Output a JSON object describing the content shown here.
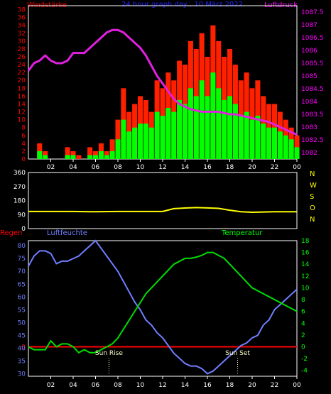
{
  "colors": {
    "wind_label": "#ff0000",
    "title": "#2222ff",
    "pressure": "#ff00ff",
    "pressure_line": "#e020e0",
    "gust": "#ff2000",
    "mean": "#00ff00",
    "dir": "#ffff00",
    "dir_letters": "#ffff00",
    "axis": "#ffffff",
    "rain": "#ff0000",
    "humidity": "#6f7fff",
    "temp": "#00dd00",
    "temp_axis": "#00ff00",
    "sun": "#ffffcc"
  },
  "header": {
    "wind_label": "Windstärke",
    "title": "24 hour graph day , 10 März 2022",
    "pressure_label": "Luftdruck"
  },
  "bottom_labels": {
    "rain": "Regen",
    "humidity": "Luftfeuchte",
    "temp": "Temperatur",
    "sunrise": "Sun Rise",
    "sunset": "Sun Set"
  },
  "time_ticks": [
    "02",
    "04",
    "06",
    "08",
    "10",
    "12",
    "14",
    "16",
    "18",
    "20",
    "22",
    "00"
  ],
  "direction_letters": [
    "N",
    "W",
    "S",
    "O",
    "N"
  ],
  "chart_data": [
    {
      "type": "line",
      "name": "wind_and_pressure",
      "x_range": [
        0,
        24
      ],
      "left_axis": {
        "label": "Windstärke",
        "ticks": [
          0,
          2,
          4,
          6,
          8,
          10,
          12,
          14,
          16,
          18,
          20,
          22,
          24,
          26,
          28,
          30,
          32,
          34,
          36,
          38
        ],
        "range": [
          0,
          39
        ]
      },
      "right_axis": {
        "label": "Luftdruck",
        "ticks": [
          1082,
          1082.5,
          1083,
          1083.5,
          1084,
          1084.5,
          1085,
          1085.5,
          1086,
          1086.5,
          1087,
          1087.5
        ],
        "range": [
          1081.75,
          1087.75
        ]
      },
      "series": [
        {
          "name": "Luftdruck",
          "axis": "right",
          "x": [
            0,
            0.5,
            1,
            1.5,
            2,
            2.5,
            3,
            3.5,
            4,
            4.5,
            5,
            5.5,
            6,
            6.5,
            7,
            7.5,
            8,
            8.5,
            9,
            9.5,
            10,
            10.5,
            11,
            11.5,
            12,
            12.5,
            13,
            13.5,
            14,
            14.5,
            15,
            15.5,
            16,
            16.5,
            17,
            17.5,
            18,
            18.5,
            19,
            19.5,
            20,
            20.5,
            21,
            21.5,
            22,
            22.5,
            23,
            23.5,
            24
          ],
          "values": [
            1085.2,
            1085.5,
            1085.6,
            1085.8,
            1085.6,
            1085.5,
            1085.5,
            1085.6,
            1085.9,
            1085.9,
            1085.9,
            1086.1,
            1086.3,
            1086.5,
            1086.7,
            1086.8,
            1086.8,
            1086.7,
            1086.5,
            1086.3,
            1086.1,
            1085.8,
            1085.4,
            1085.0,
            1084.7,
            1084.4,
            1084.1,
            1083.9,
            1083.8,
            1083.7,
            1083.65,
            1083.6,
            1083.6,
            1083.6,
            1083.6,
            1083.55,
            1083.5,
            1083.5,
            1083.45,
            1083.4,
            1083.35,
            1083.3,
            1083.25,
            1083.2,
            1083.1,
            1083.0,
            1082.9,
            1082.8,
            1082.7
          ]
        },
        {
          "name": "Windböen",
          "axis": "left",
          "x": [
            0,
            0.5,
            1,
            1.5,
            2,
            2.5,
            3,
            3.5,
            4,
            4.5,
            5,
            5.5,
            6,
            6.5,
            7,
            7.5,
            8,
            8.5,
            9,
            9.5,
            10,
            10.5,
            11,
            11.5,
            12,
            12.5,
            13,
            13.5,
            14,
            14.5,
            15,
            15.5,
            16,
            16.5,
            17,
            17.5,
            18,
            18.5,
            19,
            19.5,
            20,
            20.5,
            21,
            21.5,
            22,
            22.5,
            23,
            23.5,
            24
          ],
          "values": [
            0,
            0,
            4,
            2,
            0,
            0,
            0,
            3,
            2,
            1,
            0,
            3,
            2,
            4,
            2,
            5,
            10,
            18,
            12,
            14,
            16,
            15,
            12,
            20,
            18,
            22,
            20,
            25,
            24,
            30,
            28,
            32,
            26,
            34,
            30,
            26,
            28,
            24,
            20,
            22,
            18,
            20,
            16,
            14,
            14,
            12,
            10,
            8,
            6
          ]
        },
        {
          "name": "Windmittel",
          "axis": "left",
          "x": [
            0,
            0.5,
            1,
            1.5,
            2,
            2.5,
            3,
            3.5,
            4,
            4.5,
            5,
            5.5,
            6,
            6.5,
            7,
            7.5,
            8,
            8.5,
            9,
            9.5,
            10,
            10.5,
            11,
            11.5,
            12,
            12.5,
            13,
            13.5,
            14,
            14.5,
            15,
            15.5,
            16,
            16.5,
            17,
            17.5,
            18,
            18.5,
            19,
            19.5,
            20,
            20.5,
            21,
            21.5,
            22,
            22.5,
            23,
            23.5,
            24
          ],
          "values": [
            0,
            0,
            2,
            1,
            0,
            0,
            0,
            1,
            1,
            0,
            0,
            1,
            1,
            2,
            1,
            2,
            5,
            10,
            7,
            8,
            9,
            9,
            8,
            12,
            11,
            13,
            12,
            15,
            14,
            18,
            16,
            20,
            16,
            22,
            18,
            15,
            16,
            14,
            11,
            12,
            10,
            11,
            9,
            8,
            8,
            7,
            6,
            5,
            3
          ]
        }
      ]
    },
    {
      "type": "line",
      "name": "wind_direction",
      "x_range": [
        0,
        24
      ],
      "y_axis": {
        "ticks": [
          0,
          90,
          180,
          270,
          360
        ],
        "range": [
          0,
          360
        ]
      },
      "series": [
        {
          "name": "Windrichtung",
          "x": [
            0,
            2,
            4,
            6,
            8,
            10,
            12,
            13,
            14,
            15,
            16,
            17,
            18,
            19,
            20,
            22,
            24
          ],
          "values": [
            110,
            110,
            110,
            108,
            110,
            110,
            110,
            128,
            132,
            135,
            133,
            130,
            118,
            108,
            105,
            108,
            108
          ]
        }
      ]
    },
    {
      "type": "line",
      "name": "humidity_and_temperature",
      "x_range": [
        0,
        24
      ],
      "left_axis": {
        "label": "Luftfeuchte",
        "ticks": [
          30,
          35,
          40,
          45,
          50,
          55,
          60,
          65,
          70,
          75,
          80
        ],
        "range": [
          29,
          82
        ]
      },
      "right_axis": {
        "label": "Temperatur",
        "ticks": [
          -4,
          -2,
          0,
          2,
          4,
          6,
          8,
          10,
          12,
          14,
          16,
          18
        ],
        "range": [
          -5,
          18
        ]
      },
      "rain_line": {
        "label": "0",
        "value": 0
      },
      "series": [
        {
          "name": "Luftfeuchte",
          "axis": "left",
          "x": [
            0,
            0.5,
            1,
            1.5,
            2,
            2.5,
            3,
            3.5,
            4,
            4.5,
            5,
            5.5,
            6,
            6.5,
            7,
            7.5,
            8,
            8.5,
            9,
            9.5,
            10,
            10.5,
            11,
            11.5,
            12,
            12.5,
            13,
            13.5,
            14,
            14.5,
            15,
            15.5,
            16,
            16.5,
            17,
            17.5,
            18,
            18.5,
            19,
            19.5,
            20,
            20.5,
            21,
            21.5,
            22,
            22.5,
            23,
            23.5,
            24
          ],
          "values": [
            72,
            76,
            78,
            78,
            77,
            73,
            74,
            74,
            75,
            76,
            78,
            80,
            82,
            79,
            76,
            73,
            70,
            66,
            62,
            58,
            55,
            51,
            49,
            46,
            44,
            41,
            38,
            36,
            34,
            33,
            33,
            32,
            30,
            31,
            33,
            35,
            37,
            39,
            41,
            42,
            44,
            45,
            49,
            51,
            55,
            57,
            59,
            61,
            63
          ]
        },
        {
          "name": "Temperatur",
          "axis": "right",
          "x": [
            0,
            0.5,
            1,
            1.5,
            2,
            2.5,
            3,
            3.5,
            4,
            4.5,
            5,
            5.5,
            6,
            6.5,
            7,
            7.5,
            8,
            8.5,
            9,
            9.5,
            10,
            10.5,
            11,
            11.5,
            12,
            12.5,
            13,
            13.5,
            14,
            14.5,
            15,
            15.5,
            16,
            16.5,
            17,
            17.5,
            18,
            18.5,
            19,
            19.5,
            20,
            20.5,
            21,
            21.5,
            22,
            22.5,
            23,
            23.5,
            24
          ],
          "values": [
            0,
            -0.5,
            -0.5,
            -0.5,
            1,
            0,
            0.5,
            0.5,
            0,
            -1,
            -0.5,
            -1,
            -1,
            -0.5,
            0,
            0.5,
            1.5,
            3,
            4.5,
            6,
            7.5,
            9,
            10,
            11,
            12,
            13,
            14,
            14.5,
            15,
            15,
            15.2,
            15.5,
            16,
            16,
            15.5,
            15,
            14,
            13,
            12,
            11,
            10,
            9.5,
            9,
            8.5,
            8,
            7.5,
            7,
            6.5,
            6
          ]
        }
      ],
      "annotations": [
        {
          "label": "Sun Rise",
          "x": 7.2
        },
        {
          "label": "Sun Set",
          "x": 18.7
        }
      ]
    }
  ]
}
